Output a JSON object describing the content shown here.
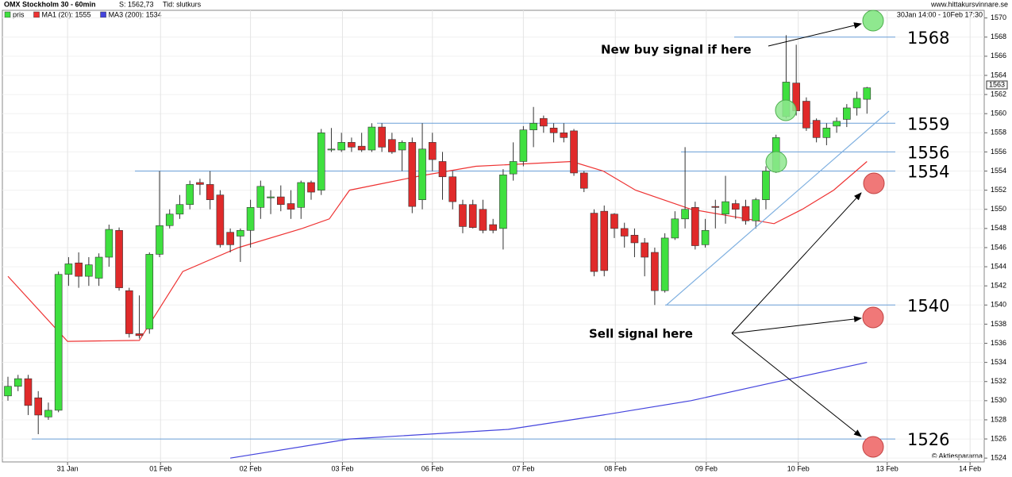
{
  "chart_data": {
    "type": "candlestick",
    "title": "OMX Stockholm 30 - 60min",
    "subtitle": "S: 1562,73",
    "time_label": "Tid: slutkurs",
    "source": "www.hittakursvinnare.se",
    "period": "30Jan 14:00 - 10Feb 17:30",
    "credit": "© Aktiespararna",
    "candle_name": "pris",
    "up_color": "#3fe03f",
    "down_color": "#e02a2a",
    "open": [
      1530.5,
      1531.5,
      1532.3,
      1530.3,
      1528.3,
      1529,
      1543.2,
      1544.4,
      1543,
      1542.8,
      1545,
      1547.8,
      1541.5,
      1537,
      1537.5,
      1545.3,
      1548.3,
      1549.5,
      1550.5,
      1552.8,
      1552.6,
      1551.5,
      1547.6,
      1547.2,
      1547.8,
      1550.2,
      1551.2,
      1551.3,
      1550.6,
      1550.2,
      1552.8,
      1552,
      1556.2,
      1556.2,
      1557,
      1556.6,
      1556.2,
      1558.6,
      1557.3,
      1556.2,
      1557,
      1551,
      1557,
      1555,
      1553.4,
      1550.5,
      1550.5,
      1550,
      1548.4,
      1548,
      1553.7,
      1555,
      1558.3,
      1559.5,
      1558.5,
      1558,
      1558.2,
      1553.8,
      1549.6,
      1549.8,
      1549.5,
      1548,
      1547.3,
      1546.5,
      1545.5,
      1541.5,
      1547,
      1549,
      1550.2,
      1546.3,
      1550.3,
      1549.5,
      1550.6,
      1550.3,
      1548.8,
      1551,
      1554,
      1559.7,
      1563.2,
      1561.3,
      1559.3,
      1557.5,
      1558.7,
      1559.4,
      1560.6,
      1561.5
    ],
    "high": [
      1532.5,
      1532.7,
      1532.7,
      1531,
      1529.8,
      1543.5,
      1545,
      1545.5,
      1545,
      1545.4,
      1548.4,
      1548.1,
      1541.8,
      1541,
      1545.5,
      1554,
      1550,
      1551.5,
      1553,
      1553.2,
      1554,
      1552,
      1548,
      1548,
      1551,
      1553,
      1552,
      1552.5,
      1552,
      1553,
      1553,
      1558.4,
      1558.5,
      1558,
      1557.5,
      1558,
      1559,
      1559,
      1558,
      1557.2,
      1557.5,
      1559,
      1558,
      1556,
      1554,
      1551,
      1551,
      1551,
      1549,
      1554.2,
      1557,
      1558.7,
      1560.7,
      1559.8,
      1559,
      1559,
      1558.4,
      1554,
      1550,
      1550.4,
      1549.6,
      1548.6,
      1548,
      1547,
      1546,
      1547.5,
      1549.8,
      1556.5,
      1550.8,
      1549,
      1551,
      1553.5,
      1551,
      1551,
      1551.2,
      1554.5,
      1557.8,
      1568.2,
      1567.2,
      1561.7,
      1559.5,
      1559,
      1559.6,
      1561,
      1562.3,
      1562.8
    ],
    "low": [
      1530,
      1531,
      1528.5,
      1526.5,
      1528,
      1528.8,
      1542,
      1541.8,
      1542,
      1542,
      1544,
      1541.5,
      1536.6,
      1536.5,
      1537,
      1545,
      1548,
      1549,
      1550,
      1551.5,
      1550,
      1546,
      1545.5,
      1544.5,
      1546,
      1549,
      1549.5,
      1549.8,
      1549,
      1549,
      1551,
      1551.5,
      1556,
      1556,
      1556,
      1556,
      1556,
      1556,
      1555.8,
      1554,
      1549.6,
      1550,
      1554,
      1551,
      1550,
      1547.5,
      1548,
      1547.5,
      1547.5,
      1545.8,
      1553,
      1554.5,
      1556.5,
      1558,
      1557,
      1557,
      1553.5,
      1551.8,
      1543,
      1543,
      1547,
      1546,
      1545,
      1543,
      1540,
      1541.3,
      1546.8,
      1548,
      1545.8,
      1546,
      1548,
      1548.5,
      1549,
      1548.4,
      1548,
      1550,
      1553.8,
      1559.5,
      1559.8,
      1558.2,
      1557,
      1556.7,
      1558,
      1558.6,
      1559.8,
      1560
    ],
    "close": [
      1531.5,
      1532.3,
      1529.5,
      1528.5,
      1529,
      1543.2,
      1544.3,
      1543,
      1544.2,
      1545,
      1547.9,
      1541.8,
      1537,
      1536.8,
      1545.3,
      1548.3,
      1549.5,
      1550.5,
      1552.6,
      1552.6,
      1551,
      1546.3,
      1546.3,
      1547.8,
      1550.2,
      1552.4,
      1551.3,
      1550.5,
      1550,
      1552.8,
      1551.8,
      1558,
      1556.3,
      1557,
      1556.5,
      1556.2,
      1558.6,
      1556.5,
      1556,
      1557,
      1550.3,
      1556.3,
      1555.2,
      1553.4,
      1550.8,
      1548.2,
      1548.1,
      1547.8,
      1547.8,
      1553.6,
      1555,
      1558.3,
      1559,
      1558.7,
      1558,
      1557.5,
      1553.8,
      1552.2,
      1543.5,
      1543.6,
      1548,
      1547.2,
      1546.5,
      1545,
      1541.5,
      1547,
      1549,
      1550,
      1546.2,
      1547.8,
      1550.2,
      1550.8,
      1550,
      1548.8,
      1551,
      1554,
      1557.5,
      1563.3,
      1560.3,
      1558.5,
      1557.5,
      1558.5,
      1559.2,
      1560.6,
      1561.6,
      1562.7
    ],
    "series": [
      {
        "name": "MA1 (20): 1555",
        "color": "#ee3333",
        "x": [
          0,
          5.9,
          13,
          17.3,
          22.8,
          29.1,
          31.8,
          33.8,
          40.8,
          46.3,
          55.8,
          58.9,
          62.1,
          67.6,
          73.1,
          75.8,
          78.6,
          81.7,
          85
        ],
        "values": [
          1543,
          1536.2,
          1536.3,
          1543.5,
          1546,
          1548,
          1549,
          1552,
          1553.5,
          1554.5,
          1555,
          1554,
          1552,
          1550,
          1549,
          1548.5,
          1550,
          1552,
          1555
        ]
      },
      {
        "name": "MA3 (200): 1534",
        "color": "#4444dd",
        "x": [
          22,
          33.8,
          49.5,
          58.9,
          67.6,
          76.2,
          85
        ],
        "values": [
          1524,
          1526,
          1527,
          1528.5,
          1530,
          1532,
          1534
        ]
      }
    ],
    "last_price": 1563,
    "levels": [
      1568,
      1559,
      1556,
      1554,
      1540,
      1526
    ],
    "annotations": [
      "New buy signal if here",
      "Sell signal here"
    ],
    "xlim": [
      -0.55,
      96.6
    ],
    "xticks": [
      {
        "value": 5.9,
        "label": "31 Jan"
      },
      {
        "value": 15.1,
        "label": "01 Feb"
      },
      {
        "value": 24,
        "label": "02 Feb"
      },
      {
        "value": 33.1,
        "label": "03 Feb"
      },
      {
        "value": 42,
        "label": "06 Feb"
      },
      {
        "value": 51,
        "label": "07 Feb"
      },
      {
        "value": 60.1,
        "label": "08 Feb"
      },
      {
        "value": 69.1,
        "label": "09 Feb"
      },
      {
        "value": 78.2,
        "label": "10 Feb"
      },
      {
        "value": 87,
        "label": "13 Feb"
      },
      {
        "value": 95.2,
        "label": "14 Feb"
      }
    ],
    "ylim": [
      1523.6,
      1570.8
    ],
    "yticks": [
      1524,
      1526,
      1528,
      1530,
      1532,
      1534,
      1536,
      1538,
      1540,
      1542,
      1544,
      1546,
      1548,
      1550,
      1552,
      1554,
      1556,
      1558,
      1560,
      1562,
      1564,
      1566,
      1568,
      1570
    ],
    "grid": true
  }
}
